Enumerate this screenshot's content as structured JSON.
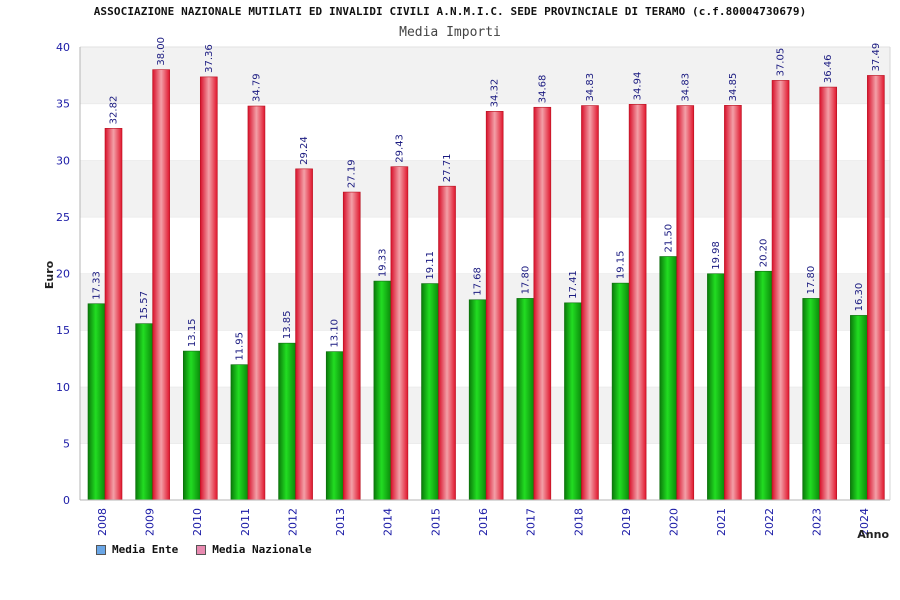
{
  "title": "ASSOCIAZIONE NAZIONALE MUTILATI ED INVALIDI CIVILI A.N.M.I.C. SEDE PROVINCIALE DI TERAMO (c.f.80004730679)",
  "subtitle": "Media Importi",
  "legend": [
    {
      "label": "Media Ente",
      "color": "#6aa6e6"
    },
    {
      "label": "Media Nazionale",
      "color": "#e88ab0"
    }
  ],
  "chart_data": {
    "type": "bar",
    "xlabel": "Anno",
    "ylabel": "Euro",
    "ylim": [
      0,
      40
    ],
    "yticks": [
      0,
      5,
      10,
      15,
      20,
      25,
      30,
      35,
      40
    ],
    "grid": "horizontal bands",
    "categories": [
      "2008",
      "2009",
      "2010",
      "2011",
      "2012",
      "2013",
      "2014",
      "2015",
      "2016",
      "2017",
      "2018",
      "2019",
      "2020",
      "2021",
      "2022",
      "2023",
      "2024"
    ],
    "series": [
      {
        "name": "Media Ente",
        "color": "#11b011",
        "values": [
          17.33,
          15.57,
          13.15,
          11.95,
          13.85,
          13.1,
          19.33,
          19.11,
          17.68,
          17.8,
          17.41,
          19.15,
          21.5,
          19.98,
          20.2,
          17.8,
          16.3
        ],
        "labels": [
          "17.33",
          "15.57",
          "13.15",
          "11.95",
          "13.85",
          "13.10",
          "19.33",
          "19.11",
          "17.68",
          "17.80",
          "17.41",
          "19.15",
          "21.50",
          "19.98",
          "20.20",
          "17.80",
          "16.30"
        ]
      },
      {
        "name": "Media Nazionale",
        "color": "#ee2233",
        "values": [
          32.82,
          38.0,
          37.36,
          34.79,
          29.24,
          27.19,
          29.43,
          27.71,
          34.32,
          34.68,
          34.83,
          34.94,
          34.83,
          34.85,
          37.05,
          36.46,
          37.49
        ],
        "labels": [
          "32.82",
          "38.00",
          "37.36",
          "34.79",
          "29.24",
          "27.19",
          "29.43",
          "27.71",
          "34.32",
          "34.68",
          "34.83",
          "34.94",
          "34.83",
          "34.85",
          "37.05",
          "36.46",
          "37.49"
        ]
      }
    ]
  }
}
